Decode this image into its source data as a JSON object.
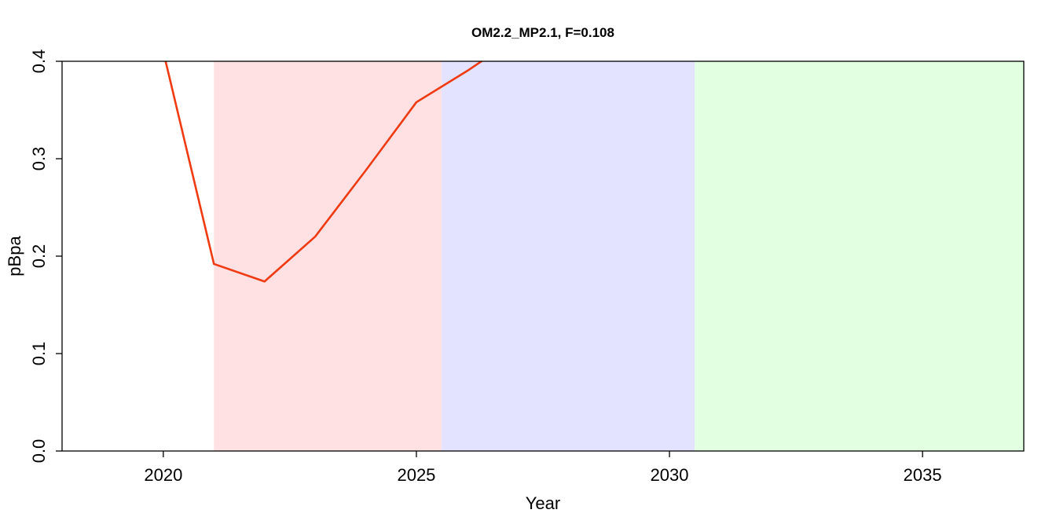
{
  "chart_data": {
    "type": "line",
    "title": "OM2.2_MP2.1, F=0.108",
    "xlabel": "Year",
    "ylabel": "pBpa",
    "xlim": [
      2018,
      2037
    ],
    "ylim": [
      0,
      0.4
    ],
    "x_ticks": [
      2020,
      2025,
      2030,
      2035
    ],
    "x_tick_labels": [
      "2020",
      "2025",
      "2030",
      "2035"
    ],
    "y_ticks": [
      0,
      0.1,
      0.2,
      0.3,
      0.4
    ],
    "y_tick_labels": [
      "0.0",
      "0.1",
      "0.2",
      "0.3",
      "0.4"
    ],
    "shaded_periods": [
      {
        "from": 2021,
        "to": 2025.5,
        "color": "#ffe1e3"
      },
      {
        "from": 2025.5,
        "to": 2030.5,
        "color": "#e3e3ff"
      },
      {
        "from": 2030.5,
        "to": 2037,
        "color": "#e2ffe2"
      }
    ],
    "series": [
      {
        "color": "#f03a12",
        "x": [
          2020,
          2021,
          2022,
          2023,
          2024,
          2025,
          2026,
          2027
        ],
        "y": [
          0.41,
          0.192,
          0.174,
          0.22,
          0.288,
          0.358,
          0.39,
          0.425
        ]
      }
    ]
  }
}
